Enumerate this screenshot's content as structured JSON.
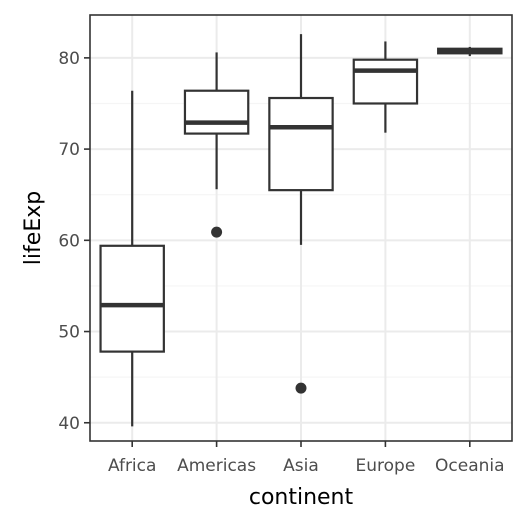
{
  "chart_data": {
    "type": "box",
    "title": "",
    "xlabel": "continent",
    "ylabel": "lifeExp",
    "ylim": [
      38.0,
      84.7
    ],
    "yticks": [
      40,
      50,
      60,
      70,
      80
    ],
    "grid": true,
    "categories": [
      "Africa",
      "Americas",
      "Asia",
      "Europe",
      "Oceania"
    ],
    "boxes": [
      {
        "category": "Africa",
        "whisker_low": 39.6,
        "q1": 47.8,
        "median": 52.9,
        "q3": 59.4,
        "whisker_high": 76.4,
        "outliers": []
      },
      {
        "category": "Americas",
        "whisker_low": 65.6,
        "q1": 71.7,
        "median": 72.9,
        "q3": 76.4,
        "whisker_high": 80.6,
        "outliers": [
          60.9
        ]
      },
      {
        "category": "Asia",
        "whisker_low": 59.5,
        "q1": 65.5,
        "median": 72.4,
        "q3": 75.6,
        "whisker_high": 82.6,
        "outliers": [
          43.8
        ]
      },
      {
        "category": "Europe",
        "whisker_low": 71.8,
        "q1": 75.0,
        "median": 78.6,
        "q3": 79.8,
        "whisker_high": 81.8,
        "outliers": []
      },
      {
        "category": "Oceania",
        "whisker_low": 80.2,
        "q1": 80.5,
        "median": 80.7,
        "q3": 81.0,
        "whisker_high": 81.2,
        "outliers": []
      }
    ],
    "colors": {
      "box_fill": "#ffffff",
      "box_stroke": "#333333",
      "grid_major": "#ebebeb",
      "grid_minor": "#f5f5f5",
      "panel_border": "#333333",
      "tick_text": "#4d4d4d",
      "title_text": "#000000"
    }
  }
}
